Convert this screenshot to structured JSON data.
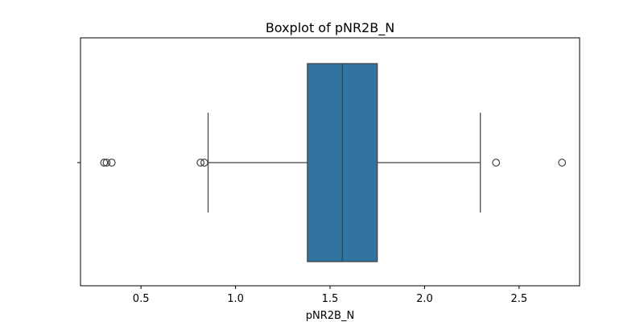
{
  "chart_data": {
    "type": "boxplot",
    "title": "Boxplot of pNR2B_N",
    "xlabel": "pNR2B_N",
    "ylabel": "",
    "orientation": "horizontal",
    "xlim": [
      0.18,
      2.82
    ],
    "xticks": [
      0.5,
      1.0,
      1.5,
      2.0,
      2.5
    ],
    "xtick_labels": [
      "0.5",
      "1.0",
      "1.5",
      "2.0",
      "2.5"
    ],
    "grid": false,
    "box": {
      "q1": 1.38,
      "median": 1.565,
      "q3": 1.75,
      "whisker_low": 0.855,
      "whisker_high": 2.295
    },
    "outliers": [
      0.305,
      0.318,
      0.345,
      0.815,
      0.835,
      2.378,
      2.727
    ],
    "box_color": "#3274a1",
    "line_color": "#404040"
  }
}
